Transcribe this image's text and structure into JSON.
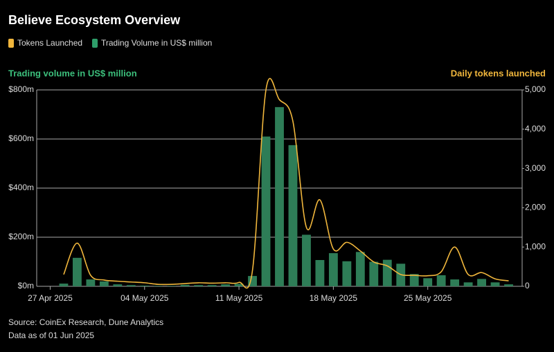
{
  "chart_data": {
    "type": "bar_line",
    "title": "Believe Ecosystem Overview",
    "y_label": "Trading volume in US$ million",
    "y2_label": "Daily tokens launched",
    "source": "Source: CoinEx Research, Dune Analytics",
    "note": "Data as of 01 Jun 2025",
    "x": [
      "2025-04-28",
      "2025-04-29",
      "2025-04-30",
      "2025-05-01",
      "2025-05-02",
      "2025-05-03",
      "2025-05-04",
      "2025-05-05",
      "2025-05-06",
      "2025-05-07",
      "2025-05-08",
      "2025-05-09",
      "2025-05-10",
      "2025-05-11",
      "2025-05-12",
      "2025-05-13",
      "2025-05-14",
      "2025-05-15",
      "2025-05-16",
      "2025-05-17",
      "2025-05-18",
      "2025-05-19",
      "2025-05-20",
      "2025-05-21",
      "2025-05-22",
      "2025-05-23",
      "2025-05-24",
      "2025-05-25",
      "2025-05-26",
      "2025-05-27",
      "2025-05-28",
      "2025-05-29",
      "2025-05-30",
      "2025-05-31"
    ],
    "series": [
      {
        "name": "Tokens Launched",
        "type": "line",
        "axis": "y2",
        "color": "#f0b63c",
        "values": [
          300,
          1100,
          280,
          160,
          130,
          110,
          90,
          50,
          50,
          70,
          90,
          80,
          90,
          100,
          400,
          5000,
          4750,
          4200,
          1500,
          2200,
          950,
          1120,
          900,
          620,
          520,
          300,
          280,
          270,
          370,
          1000,
          300,
          350,
          190,
          140
        ]
      },
      {
        "name": "Trading Volume in US$ million",
        "type": "bar",
        "axis": "y",
        "color": "#2e7d57",
        "values": [
          11,
          116,
          28,
          20,
          8,
          5,
          3,
          2,
          2,
          6,
          5,
          5,
          8,
          10,
          42,
          610,
          730,
          575,
          210,
          107,
          135,
          102,
          140,
          100,
          108,
          92,
          50,
          33,
          45,
          28,
          16,
          30,
          16,
          8
        ]
      }
    ],
    "xlim": [
      "2025-04-26",
      "2025-06-01"
    ],
    "xticks": [
      {
        "value": "2025-04-27",
        "label": "27 Apr 2025"
      },
      {
        "value": "2025-05-04",
        "label": "04 May 2025"
      },
      {
        "value": "2025-05-11",
        "label": "11 May 2025"
      },
      {
        "value": "2025-05-18",
        "label": "18 May 2025"
      },
      {
        "value": "2025-05-25",
        "label": "25 May 2025"
      }
    ],
    "ylim": [
      0,
      800
    ],
    "yticks": [
      {
        "value": 0,
        "label": "$0m"
      },
      {
        "value": 200,
        "label": "$200m"
      },
      {
        "value": 400,
        "label": "$400m"
      },
      {
        "value": 600,
        "label": "$600m"
      },
      {
        "value": 800,
        "label": "$800m"
      }
    ],
    "y2lim": [
      0,
      5000
    ],
    "y2ticks": [
      0,
      {
        "value": 1000,
        "label": "1,000"
      },
      {
        "value": 2000,
        "label": "2,000"
      },
      {
        "value": 3000,
        "label": "3,000"
      },
      {
        "value": 4000,
        "label": "4,000"
      },
      {
        "value": 5000,
        "label": "5,000"
      }
    ],
    "grid": true
  }
}
